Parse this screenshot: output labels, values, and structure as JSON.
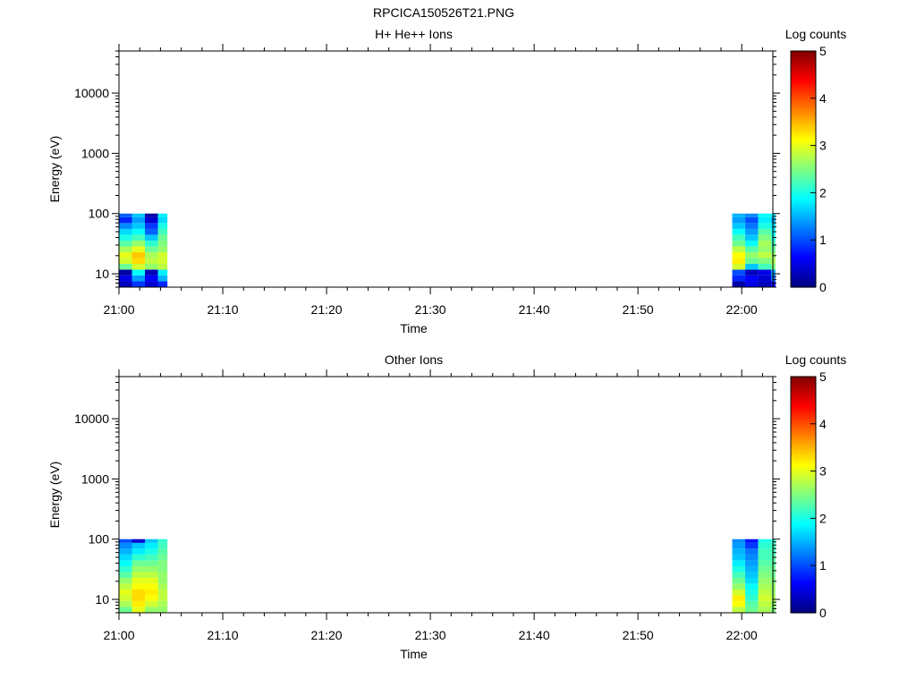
{
  "figure_title": "RPCICA150526T21.PNG",
  "chart_data": [
    {
      "type": "heatmap",
      "title": "H+ He++ Ions",
      "xlabel": "Time",
      "ylabel": "Energy (eV)",
      "yscale": "log",
      "ylim": [
        6,
        50000
      ],
      "xlim": [
        "21:00",
        "22:03"
      ],
      "x_ticks": [
        "21:00",
        "21:10",
        "21:20",
        "21:30",
        "21:40",
        "21:50",
        "22:00"
      ],
      "y_ticks": [
        "10",
        "100",
        "1000",
        "10000"
      ],
      "colorbar": {
        "label": "Log counts",
        "min": 0,
        "max": 5,
        "ticks": [
          "0",
          "1",
          "2",
          "3",
          "4",
          "5"
        ]
      },
      "energy_bins": [
        6.0,
        7.5,
        9.4,
        11.7,
        14.6,
        18.3,
        22.8,
        28.5,
        35.6,
        44.5,
        55.6,
        69.5,
        86.9,
        100.0
      ],
      "blocks": [
        {
          "time_bins": [
            "21:00:00",
            "21:01:15",
            "21:02:30",
            "21:03:45",
            "21:04:40"
          ],
          "log_counts": [
            [
              0.3,
              0.9,
              0.4,
              0.8
            ],
            [
              0.5,
              1.4,
              0.6,
              1.5
            ],
            [
              0.2,
              1.9,
              0.3,
              1.8
            ],
            [
              2.4,
              2.9,
              2.6,
              2.8
            ],
            [
              2.9,
              3.3,
              2.8,
              2.9
            ],
            [
              3.0,
              3.4,
              2.7,
              2.9
            ],
            [
              2.7,
              3.0,
              2.4,
              2.6
            ],
            [
              2.3,
              2.6,
              2.1,
              2.5
            ],
            [
              2.0,
              2.2,
              1.6,
              2.4
            ],
            [
              1.7,
              1.9,
              1.1,
              2.2
            ],
            [
              1.3,
              1.6,
              0.9,
              2.0
            ],
            [
              0.8,
              1.4,
              0.4,
              1.7
            ],
            [
              1.1,
              1.6,
              0.2,
              1.8
            ]
          ]
        },
        {
          "time_bins": [
            "21:59:05",
            "22:00:20",
            "22:01:35",
            "22:02:50",
            "22:03:15"
          ],
          "log_counts": [
            [
              0.2,
              0.5,
              0.3,
              0.6
            ],
            [
              0.8,
              0.6,
              0.4,
              1.2
            ],
            [
              1.0,
              0.3,
              0.5,
              1.4
            ],
            [
              2.9,
              1.6,
              2.2,
              2.5
            ],
            [
              3.2,
              2.4,
              2.5,
              2.7
            ],
            [
              3.1,
              2.6,
              2.8,
              2.6
            ],
            [
              2.8,
              2.3,
              2.6,
              2.4
            ],
            [
              2.4,
              1.9,
              2.7,
              2.2
            ],
            [
              2.2,
              1.6,
              2.5,
              2.0
            ],
            [
              1.9,
              1.4,
              2.3,
              1.9
            ],
            [
              1.6,
              1.2,
              2.0,
              1.7
            ],
            [
              1.4,
              1.0,
              1.8,
              1.5
            ],
            [
              1.5,
              1.3,
              1.9,
              1.8
            ]
          ]
        }
      ]
    },
    {
      "type": "heatmap",
      "title": "Other Ions",
      "xlabel": "Time",
      "ylabel": "Energy (eV)",
      "yscale": "log",
      "ylim": [
        6,
        50000
      ],
      "xlim": [
        "21:00",
        "22:03"
      ],
      "x_ticks": [
        "21:00",
        "21:10",
        "21:20",
        "21:30",
        "21:40",
        "21:50",
        "22:00"
      ],
      "y_ticks": [
        "10",
        "100",
        "1000",
        "10000"
      ],
      "colorbar": {
        "label": "Log counts",
        "min": 0,
        "max": 5,
        "ticks": [
          "0",
          "1",
          "2",
          "3",
          "4",
          "5"
        ]
      },
      "energy_bins": [
        6.0,
        7.5,
        9.4,
        11.7,
        14.6,
        18.3,
        22.8,
        28.5,
        35.6,
        44.5,
        55.6,
        69.5,
        86.9,
        100.0
      ],
      "blocks": [
        {
          "time_bins": [
            "21:00:00",
            "21:01:15",
            "21:02:30",
            "21:03:45",
            "21:04:40"
          ],
          "log_counts": [
            [
              2.4,
              3.0,
              2.6,
              2.6
            ],
            [
              2.7,
              3.2,
              2.9,
              2.7
            ],
            [
              2.9,
              3.3,
              3.1,
              2.8
            ],
            [
              3.0,
              3.3,
              3.2,
              2.8
            ],
            [
              2.8,
              3.1,
              3.1,
              2.7
            ],
            [
              2.6,
              3.0,
              3.0,
              2.6
            ],
            [
              2.3,
              2.8,
              2.8,
              2.6
            ],
            [
              2.1,
              2.6,
              2.6,
              2.5
            ],
            [
              1.9,
              2.4,
              2.4,
              2.5
            ],
            [
              1.7,
              2.1,
              2.2,
              2.4
            ],
            [
              1.5,
              1.8,
              2.0,
              2.3
            ],
            [
              1.3,
              1.6,
              1.8,
              2.2
            ],
            [
              1.0,
              0.4,
              1.6,
              2.1
            ]
          ]
        },
        {
          "time_bins": [
            "21:59:05",
            "22:00:20",
            "22:01:35",
            "22:02:50",
            "22:03:15"
          ],
          "log_counts": [
            [
              2.8,
              2.4,
              2.7,
              2.5
            ],
            [
              3.1,
              2.3,
              2.8,
              2.6
            ],
            [
              3.2,
              2.1,
              2.9,
              2.7
            ],
            [
              2.9,
              2.0,
              2.8,
              2.6
            ],
            [
              2.6,
              1.9,
              2.7,
              2.6
            ],
            [
              2.4,
              1.7,
              2.6,
              2.5
            ],
            [
              2.2,
              1.6,
              2.5,
              2.4
            ],
            [
              2.0,
              1.5,
              2.4,
              2.4
            ],
            [
              1.8,
              1.4,
              2.3,
              2.3
            ],
            [
              1.6,
              1.3,
              2.2,
              2.3
            ],
            [
              1.5,
              1.2,
              2.2,
              2.2
            ],
            [
              1.4,
              0.9,
              2.1,
              2.2
            ],
            [
              1.3,
              0.7,
              2.0,
              2.1
            ]
          ]
        }
      ]
    }
  ]
}
